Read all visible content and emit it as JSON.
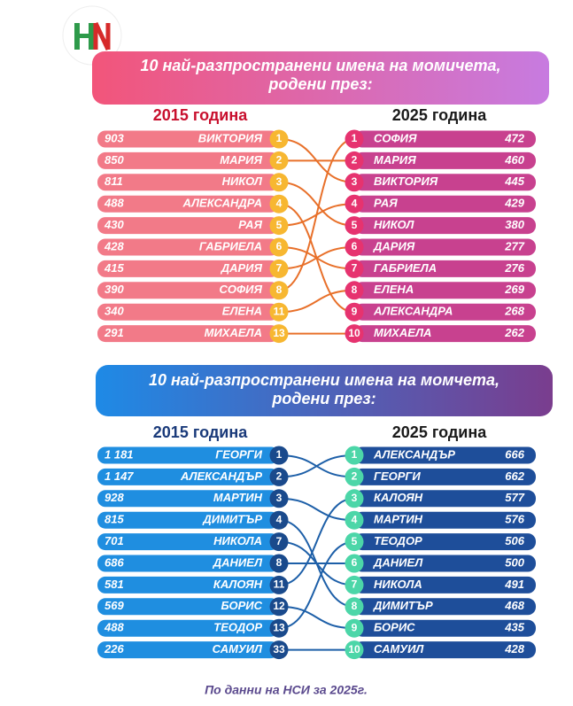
{
  "girls": {
    "title": [
      "10 най-разпространени имена на момичета,",
      "родени през:"
    ],
    "left": {
      "year": "2015 година",
      "rows": [
        {
          "count": 903,
          "name": "ВИКТОРИЯ",
          "rank": 1
        },
        {
          "count": 850,
          "name": "МАРИЯ",
          "rank": 2
        },
        {
          "count": 811,
          "name": "НИКОЛ",
          "rank": 3
        },
        {
          "count": 488,
          "name": "АЛЕКСАНДРА",
          "rank": 4
        },
        {
          "count": 430,
          "name": "РАЯ",
          "rank": 5
        },
        {
          "count": 428,
          "name": "ГАБРИЕЛА",
          "rank": 6
        },
        {
          "count": 415,
          "name": "ДАРИЯ",
          "rank": 7
        },
        {
          "count": 390,
          "name": "СОФИЯ",
          "rank": 8
        },
        {
          "count": 340,
          "name": "ЕЛЕНА",
          "rank": 11
        },
        {
          "count": 291,
          "name": "МИХАЕЛА",
          "rank": 13
        }
      ]
    },
    "right": {
      "year": "2025 година",
      "rows": [
        {
          "rank": 1,
          "name": "СОФИЯ",
          "count": 472
        },
        {
          "rank": 2,
          "name": "МАРИЯ",
          "count": 460
        },
        {
          "rank": 3,
          "name": "ВИКТОРИЯ",
          "count": 445
        },
        {
          "rank": 4,
          "name": "РАЯ",
          "count": 429
        },
        {
          "rank": 5,
          "name": "НИКОЛ",
          "count": 380
        },
        {
          "rank": 6,
          "name": "ДАРИЯ",
          "count": 277
        },
        {
          "rank": 7,
          "name": "ГАБРИЕЛА",
          "count": 276
        },
        {
          "rank": 8,
          "name": "ЕЛЕНА",
          "count": 269
        },
        {
          "rank": 9,
          "name": "АЛЕКСАНДРА",
          "count": 268
        },
        {
          "rank": 10,
          "name": "МИХАЕЛА",
          "count": 262
        }
      ]
    }
  },
  "boys": {
    "title": [
      "10 най-разпространени имена на момчета,",
      "родени през:"
    ],
    "left": {
      "year": "2015 година",
      "rows": [
        {
          "count": "1 181",
          "name": "ГЕОРГИ",
          "rank": 1
        },
        {
          "count": "1 147",
          "name": "АЛЕКСАНДЪР",
          "rank": 2
        },
        {
          "count": 928,
          "name": "МАРТИН",
          "rank": 3
        },
        {
          "count": 815,
          "name": "ДИМИТЪР",
          "rank": 4
        },
        {
          "count": 701,
          "name": "НИКОЛА",
          "rank": 7
        },
        {
          "count": 686,
          "name": "ДАНИЕЛ",
          "rank": 8
        },
        {
          "count": 581,
          "name": "КАЛОЯН",
          "rank": 11
        },
        {
          "count": 569,
          "name": "БОРИС",
          "rank": 12
        },
        {
          "count": 488,
          "name": "ТЕОДОР",
          "rank": 13
        },
        {
          "count": 226,
          "name": "САМУИЛ",
          "rank": 33
        }
      ]
    },
    "right": {
      "year": "2025 година",
      "rows": [
        {
          "rank": 1,
          "name": "АЛЕКСАНДЪР",
          "count": 666
        },
        {
          "rank": 2,
          "name": "ГЕОРГИ",
          "count": 662
        },
        {
          "rank": 3,
          "name": "КАЛОЯН",
          "count": 577
        },
        {
          "rank": 4,
          "name": "МАРТИН",
          "count": 576
        },
        {
          "rank": 5,
          "name": "ТЕОДОР",
          "count": 506
        },
        {
          "rank": 6,
          "name": "ДАНИЕЛ",
          "count": 500
        },
        {
          "rank": 7,
          "name": "НИКОЛА",
          "count": 491
        },
        {
          "rank": 8,
          "name": "ДИМИТЪР",
          "count": 468
        },
        {
          "rank": 9,
          "name": "БОРИС",
          "count": 435
        },
        {
          "rank": 10,
          "name": "САМУИЛ",
          "count": 428
        }
      ]
    }
  },
  "footer": "По данни на НСИ за 2025г."
}
